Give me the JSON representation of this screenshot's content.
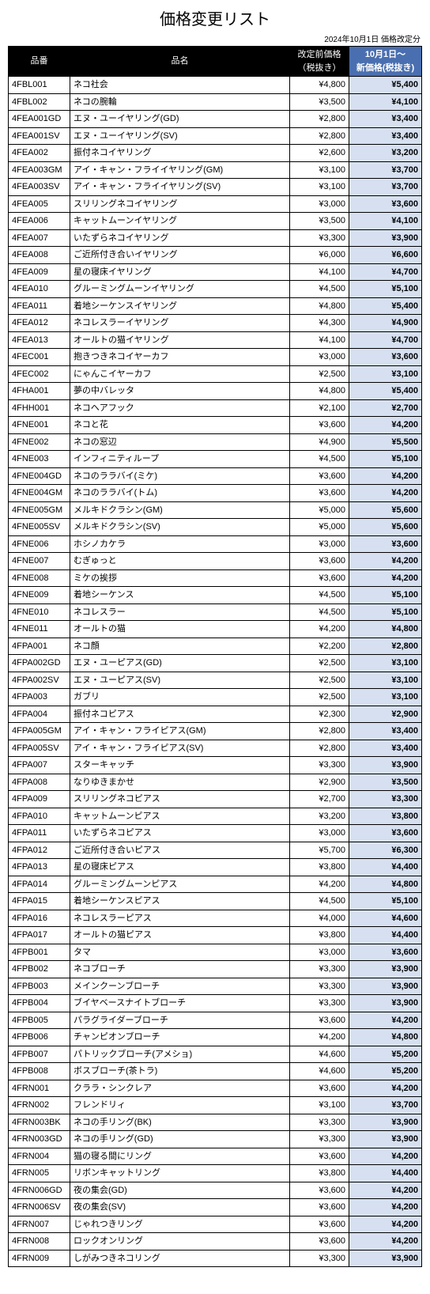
{
  "title": "価格変更リスト",
  "subheader": "2024年10月1日 価格改定分",
  "columns": {
    "code": "品番",
    "name": "品名",
    "old": "改定前価格\n（税抜き）",
    "new": "10月1日～\n新価格(税抜き)"
  },
  "currency_prefix": "¥",
  "rows": [
    {
      "code": "4FBL001",
      "name": "ネコ社会",
      "old": 4800,
      "new": 5400
    },
    {
      "code": "4FBL002",
      "name": "ネコの腕輪",
      "old": 3500,
      "new": 4100
    },
    {
      "code": "4FEA001GD",
      "name": "エヌ・ユーイヤリング(GD)",
      "old": 2800,
      "new": 3400
    },
    {
      "code": "4FEA001SV",
      "name": "エヌ・ユーイヤリング(SV)",
      "old": 2800,
      "new": 3400
    },
    {
      "code": "4FEA002",
      "name": "振付ネコイヤリング",
      "old": 2600,
      "new": 3200
    },
    {
      "code": "4FEA003GM",
      "name": "アイ・キャン・フライイヤリング(GM)",
      "old": 3100,
      "new": 3700
    },
    {
      "code": "4FEA003SV",
      "name": "アイ・キャン・フライイヤリング(SV)",
      "old": 3100,
      "new": 3700
    },
    {
      "code": "4FEA005",
      "name": "スリリングネコイヤリング",
      "old": 3000,
      "new": 3600
    },
    {
      "code": "4FEA006",
      "name": "キャットムーンイヤリング",
      "old": 3500,
      "new": 4100
    },
    {
      "code": "4FEA007",
      "name": "いたずらネコイヤリング",
      "old": 3300,
      "new": 3900
    },
    {
      "code": "4FEA008",
      "name": "ご近所付き合いイヤリング",
      "old": 6000,
      "new": 6600
    },
    {
      "code": "4FEA009",
      "name": "星の寝床イヤリング",
      "old": 4100,
      "new": 4700
    },
    {
      "code": "4FEA010",
      "name": "グルーミングムーンイヤリング",
      "old": 4500,
      "new": 5100
    },
    {
      "code": "4FEA011",
      "name": "着地シーケンスイヤリング",
      "old": 4800,
      "new": 5400
    },
    {
      "code": "4FEA012",
      "name": "ネコレスラーイヤリング",
      "old": 4300,
      "new": 4900
    },
    {
      "code": "4FEA013",
      "name": "オールトの猫イヤリング",
      "old": 4100,
      "new": 4700
    },
    {
      "code": "4FEC001",
      "name": "抱きつきネコイヤーカフ",
      "old": 3000,
      "new": 3600
    },
    {
      "code": "4FEC002",
      "name": "にゃんこイヤーカフ",
      "old": 2500,
      "new": 3100
    },
    {
      "code": "4FHA001",
      "name": "夢の中バレッタ",
      "old": 4800,
      "new": 5400
    },
    {
      "code": "4FHH001",
      "name": "ネコヘアフック",
      "old": 2100,
      "new": 2700
    },
    {
      "code": "4FNE001",
      "name": "ネコと花",
      "old": 3600,
      "new": 4200
    },
    {
      "code": "4FNE002",
      "name": "ネコの窓辺",
      "old": 4900,
      "new": 5500
    },
    {
      "code": "4FNE003",
      "name": "インフィニティループ",
      "old": 4500,
      "new": 5100
    },
    {
      "code": "4FNE004GD",
      "name": "ネコのララバイ(ミケ)",
      "old": 3600,
      "new": 4200
    },
    {
      "code": "4FNE004GM",
      "name": "ネコのララバイ(トム)",
      "old": 3600,
      "new": 4200
    },
    {
      "code": "4FNE005GM",
      "name": "メルキドクラシン(GM)",
      "old": 5000,
      "new": 5600
    },
    {
      "code": "4FNE005SV",
      "name": "メルキドクラシン(SV)",
      "old": 5000,
      "new": 5600
    },
    {
      "code": "4FNE006",
      "name": "ホシノカケラ",
      "old": 3000,
      "new": 3600
    },
    {
      "code": "4FNE007",
      "name": "むぎゅっと",
      "old": 3600,
      "new": 4200
    },
    {
      "code": "4FNE008",
      "name": "ミケの挨拶",
      "old": 3600,
      "new": 4200
    },
    {
      "code": "4FNE009",
      "name": "着地シーケンス",
      "old": 4500,
      "new": 5100
    },
    {
      "code": "4FNE010",
      "name": "ネコレスラー",
      "old": 4500,
      "new": 5100
    },
    {
      "code": "4FNE011",
      "name": "オールトの猫",
      "old": 4200,
      "new": 4800
    },
    {
      "code": "4FPA001",
      "name": "ネコ顔",
      "old": 2200,
      "new": 2800
    },
    {
      "code": "4FPA002GD",
      "name": "エヌ・ユーピアス(GD)",
      "old": 2500,
      "new": 3100
    },
    {
      "code": "4FPA002SV",
      "name": "エヌ・ユーピアス(SV)",
      "old": 2500,
      "new": 3100
    },
    {
      "code": "4FPA003",
      "name": "ガブリ",
      "old": 2500,
      "new": 3100
    },
    {
      "code": "4FPA004",
      "name": "振付ネコピアス",
      "old": 2300,
      "new": 2900
    },
    {
      "code": "4FPA005GM",
      "name": "アイ・キャン・フライピアス(GM)",
      "old": 2800,
      "new": 3400
    },
    {
      "code": "4FPA005SV",
      "name": "アイ・キャン・フライピアス(SV)",
      "old": 2800,
      "new": 3400
    },
    {
      "code": "4FPA007",
      "name": "スターキャッチ",
      "old": 3300,
      "new": 3900
    },
    {
      "code": "4FPA008",
      "name": "なりゆきまかせ",
      "old": 2900,
      "new": 3500
    },
    {
      "code": "4FPA009",
      "name": "スリリングネコピアス",
      "old": 2700,
      "new": 3300
    },
    {
      "code": "4FPA010",
      "name": "キャットムーンピアス",
      "old": 3200,
      "new": 3800
    },
    {
      "code": "4FPA011",
      "name": "いたずらネコピアス",
      "old": 3000,
      "new": 3600
    },
    {
      "code": "4FPA012",
      "name": "ご近所付き合いピアス",
      "old": 5700,
      "new": 6300
    },
    {
      "code": "4FPA013",
      "name": "星の寝床ピアス",
      "old": 3800,
      "new": 4400
    },
    {
      "code": "4FPA014",
      "name": "グルーミングムーンピアス",
      "old": 4200,
      "new": 4800
    },
    {
      "code": "4FPA015",
      "name": "着地シーケンスピアス",
      "old": 4500,
      "new": 5100
    },
    {
      "code": "4FPA016",
      "name": "ネコレスラーピアス",
      "old": 4000,
      "new": 4600
    },
    {
      "code": "4FPA017",
      "name": "オールトの猫ピアス",
      "old": 3800,
      "new": 4400
    },
    {
      "code": "4FPB001",
      "name": "タマ",
      "old": 3000,
      "new": 3600
    },
    {
      "code": "4FPB002",
      "name": "ネコブローチ",
      "old": 3300,
      "new": 3900
    },
    {
      "code": "4FPB003",
      "name": "メインクーンブローチ",
      "old": 3300,
      "new": 3900
    },
    {
      "code": "4FPB004",
      "name": "ブイヤベースナイトブローチ",
      "old": 3300,
      "new": 3900
    },
    {
      "code": "4FPB005",
      "name": "パラグライダーブローチ",
      "old": 3600,
      "new": 4200
    },
    {
      "code": "4FPB006",
      "name": "チャンピオンブローチ",
      "old": 4200,
      "new": 4800
    },
    {
      "code": "4FPB007",
      "name": "パトリックブローチ(アメショ)",
      "old": 4600,
      "new": 5200
    },
    {
      "code": "4FPB008",
      "name": "ボスブローチ(茶トラ)",
      "old": 4600,
      "new": 5200
    },
    {
      "code": "4FRN001",
      "name": "クララ・シンクレア",
      "old": 3600,
      "new": 4200
    },
    {
      "code": "4FRN002",
      "name": "フレンドリィ",
      "old": 3100,
      "new": 3700
    },
    {
      "code": "4FRN003BK",
      "name": "ネコの手リング(BK)",
      "old": 3300,
      "new": 3900
    },
    {
      "code": "4FRN003GD",
      "name": "ネコの手リング(GD)",
      "old": 3300,
      "new": 3900
    },
    {
      "code": "4FRN004",
      "name": "猫の寝る間にリング",
      "old": 3600,
      "new": 4200
    },
    {
      "code": "4FRN005",
      "name": "リボンキャットリング",
      "old": 3800,
      "new": 4400
    },
    {
      "code": "4FRN006GD",
      "name": "夜の集会(GD)",
      "old": 3600,
      "new": 4200
    },
    {
      "code": "4FRN006SV",
      "name": "夜の集会(SV)",
      "old": 3600,
      "new": 4200
    },
    {
      "code": "4FRN007",
      "name": "じゃれつきリング",
      "old": 3600,
      "new": 4200
    },
    {
      "code": "4FRN008",
      "name": "ロックオンリング",
      "old": 3600,
      "new": 4200
    },
    {
      "code": "4FRN009",
      "name": "しがみつきネコリング",
      "old": 3300,
      "new": 3900
    }
  ],
  "styles": {
    "header_bg": "#000000",
    "header_fg": "#ffffff",
    "new_header_bg": "#4a6fb0",
    "new_cell_bg": "#d6e0f0",
    "border_color": "#000000"
  }
}
